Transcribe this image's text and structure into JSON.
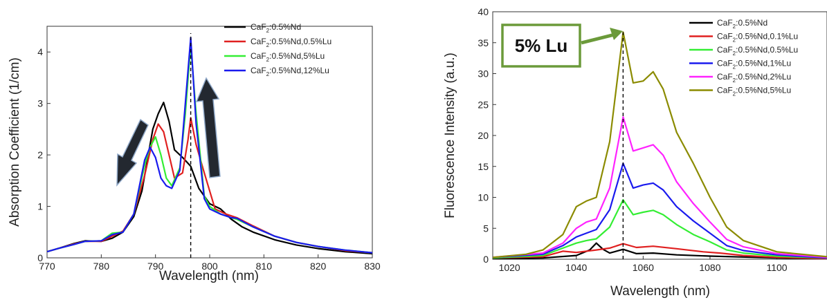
{
  "chart_data": [
    {
      "type": "line",
      "xlabel": "Wavelength (nm)",
      "ylabel": "Absorption Coefficient (1/cm)",
      "xlim": [
        770,
        830
      ],
      "ylim": [
        0,
        4.5
      ],
      "xticks": [
        770,
        780,
        790,
        800,
        810,
        820,
        830
      ],
      "yticks": [
        0,
        1,
        2,
        3,
        4
      ],
      "legend_position": "top-right",
      "reference_line_x": 796.5,
      "annotations": [
        "arrow-down-at-786",
        "arrow-up-at-801"
      ],
      "series": [
        {
          "name": "CaF2:0.5%Nd",
          "color": "#000000",
          "x": [
            770,
            772,
            775,
            777,
            780,
            782,
            784,
            786,
            787.5,
            788.5,
            789.5,
            790.5,
            791.5,
            792.5,
            793.5,
            795,
            796.5,
            798,
            800,
            802,
            804,
            806,
            808,
            812,
            816,
            820,
            825,
            830
          ],
          "y": [
            0.12,
            0.18,
            0.28,
            0.33,
            0.32,
            0.38,
            0.5,
            0.8,
            1.3,
            1.9,
            2.5,
            2.8,
            3.02,
            2.65,
            2.1,
            1.95,
            1.78,
            1.35,
            1.05,
            0.95,
            0.75,
            0.6,
            0.5,
            0.35,
            0.25,
            0.18,
            0.12,
            0.08
          ]
        },
        {
          "name": "CaF2:0.5%Nd,0.5%Lu",
          "color": "#e02020",
          "x": [
            770,
            772,
            775,
            777,
            780,
            782,
            784,
            786,
            788,
            789.5,
            790.5,
            791.5,
            792.5,
            793.5,
            795,
            796,
            796.5,
            797.5,
            799,
            801,
            803,
            805,
            808,
            812,
            816,
            820,
            825,
            830
          ],
          "y": [
            0.12,
            0.18,
            0.27,
            0.32,
            0.32,
            0.42,
            0.52,
            0.85,
            1.6,
            2.3,
            2.6,
            2.45,
            2.0,
            1.55,
            1.65,
            2.3,
            2.72,
            2.2,
            1.65,
            0.95,
            0.85,
            0.78,
            0.62,
            0.42,
            0.3,
            0.22,
            0.14,
            0.1
          ]
        },
        {
          "name": "CaF2:0.5%Nd,5%Lu",
          "color": "#33ee33",
          "x": [
            770,
            772,
            775,
            777,
            780,
            782,
            784,
            786,
            788,
            789,
            790,
            791,
            792,
            793,
            794.5,
            795.5,
            796.5,
            797.5,
            799,
            800,
            802,
            804,
            805,
            808,
            812,
            816,
            820,
            825,
            830
          ],
          "y": [
            0.12,
            0.18,
            0.26,
            0.32,
            0.33,
            0.48,
            0.5,
            0.85,
            1.8,
            2.15,
            2.35,
            2.0,
            1.55,
            1.4,
            1.75,
            2.8,
            4.15,
            2.8,
            1.2,
            1.0,
            0.85,
            0.78,
            0.75,
            0.6,
            0.42,
            0.3,
            0.22,
            0.15,
            0.1
          ]
        },
        {
          "name": "CaF2:0.5%Nd,12%Lu",
          "color": "#1a1aee",
          "x": [
            770,
            772,
            775,
            777,
            780,
            782,
            784,
            786,
            788,
            789,
            790,
            791,
            792,
            793,
            794.5,
            795.5,
            796.5,
            797.5,
            799,
            800,
            802,
            804,
            805,
            808,
            812,
            816,
            820,
            825,
            830
          ],
          "y": [
            0.12,
            0.18,
            0.26,
            0.32,
            0.33,
            0.45,
            0.5,
            0.85,
            1.9,
            2.15,
            1.95,
            1.55,
            1.4,
            1.35,
            1.7,
            3.0,
            4.28,
            2.6,
            1.15,
            0.95,
            0.85,
            0.78,
            0.77,
            0.6,
            0.42,
            0.3,
            0.22,
            0.15,
            0.1
          ]
        }
      ]
    },
    {
      "type": "line",
      "xlabel": "Wavelength (nm)",
      "ylabel": "Fluorescence Intensity (a.u.)",
      "xlim": [
        1015,
        1115
      ],
      "ylim": [
        0,
        40
      ],
      "xticks": [
        1020,
        1040,
        1060,
        1080,
        1100
      ],
      "yticks": [
        0,
        5,
        10,
        15,
        20,
        25,
        30,
        35,
        40
      ],
      "legend_position": "top-right",
      "reference_line_x": 1054,
      "callout": {
        "text": "5% Lu",
        "points_to": [
          1054,
          36.7
        ]
      },
      "series": [
        {
          "name": "CaF2:0.5%Nd",
          "color": "#000000",
          "x": [
            1015,
            1030,
            1040,
            1044,
            1046,
            1048,
            1050,
            1054,
            1058,
            1063,
            1070,
            1080,
            1100,
            1115
          ],
          "y": [
            0.1,
            0.2,
            0.6,
            1.5,
            2.6,
            1.6,
            1.0,
            1.6,
            0.9,
            1.0,
            0.7,
            0.5,
            0.2,
            0.1
          ]
        },
        {
          "name": "CaF2:0.5%Nd,0.1%Lu",
          "color": "#e02020",
          "x": [
            1015,
            1030,
            1036,
            1040,
            1046,
            1050,
            1054,
            1058,
            1063,
            1070,
            1078,
            1083,
            1090,
            1100,
            1115
          ],
          "y": [
            0.2,
            0.4,
            1.3,
            1.1,
            1.5,
            1.8,
            2.5,
            1.9,
            2.1,
            1.7,
            1.2,
            1.0,
            0.6,
            0.3,
            0.1
          ]
        },
        {
          "name": "CaF2:0.5%Nd,0.5%Lu",
          "color": "#33ee33",
          "x": [
            1015,
            1030,
            1036,
            1040,
            1043,
            1046,
            1050,
            1054,
            1057,
            1060,
            1063,
            1066,
            1070,
            1075,
            1080,
            1085,
            1090,
            1100,
            1115
          ],
          "y": [
            0.2,
            0.6,
            1.8,
            2.6,
            3.0,
            3.3,
            5.2,
            9.6,
            7.2,
            7.6,
            7.9,
            7.2,
            5.6,
            4.0,
            2.8,
            1.5,
            1.0,
            0.5,
            0.2
          ]
        },
        {
          "name": "CaF2:0.5%Nd,1%Lu",
          "color": "#1a1aee",
          "x": [
            1015,
            1030,
            1036,
            1040,
            1043,
            1046,
            1050,
            1054,
            1057,
            1060,
            1063,
            1066,
            1070,
            1075,
            1080,
            1085,
            1090,
            1100,
            1115
          ],
          "y": [
            0.3,
            0.8,
            2.2,
            3.6,
            4.2,
            4.8,
            8.0,
            15.5,
            11.5,
            12.0,
            12.3,
            11.2,
            8.5,
            6.2,
            4.2,
            2.2,
            1.4,
            0.7,
            0.2
          ]
        },
        {
          "name": "CaF2:0.5%Nd,2%Lu",
          "color": "#ff22ff",
          "x": [
            1015,
            1030,
            1036,
            1040,
            1043,
            1046,
            1050,
            1054,
            1057,
            1060,
            1063,
            1066,
            1070,
            1075,
            1080,
            1085,
            1090,
            1100,
            1115
          ],
          "y": [
            0.3,
            1.0,
            2.6,
            5.0,
            6.0,
            6.5,
            11.5,
            23.0,
            17.5,
            18.0,
            18.5,
            16.8,
            12.5,
            9.0,
            6.0,
            3.2,
            2.0,
            0.9,
            0.3
          ]
        },
        {
          "name": "CaF2:0.5%Nd,5%Lu",
          "color": "#8b8b00",
          "x": [
            1015,
            1025,
            1030,
            1036,
            1040,
            1043,
            1046,
            1050,
            1054,
            1057,
            1060,
            1063,
            1066,
            1070,
            1075,
            1080,
            1085,
            1090,
            1100,
            1115
          ],
          "y": [
            0.3,
            0.8,
            1.5,
            4.0,
            8.5,
            9.4,
            10.0,
            19.0,
            36.7,
            28.5,
            28.8,
            30.3,
            27.5,
            20.5,
            15.5,
            10.0,
            5.2,
            3.0,
            1.2,
            0.4
          ]
        }
      ]
    }
  ]
}
